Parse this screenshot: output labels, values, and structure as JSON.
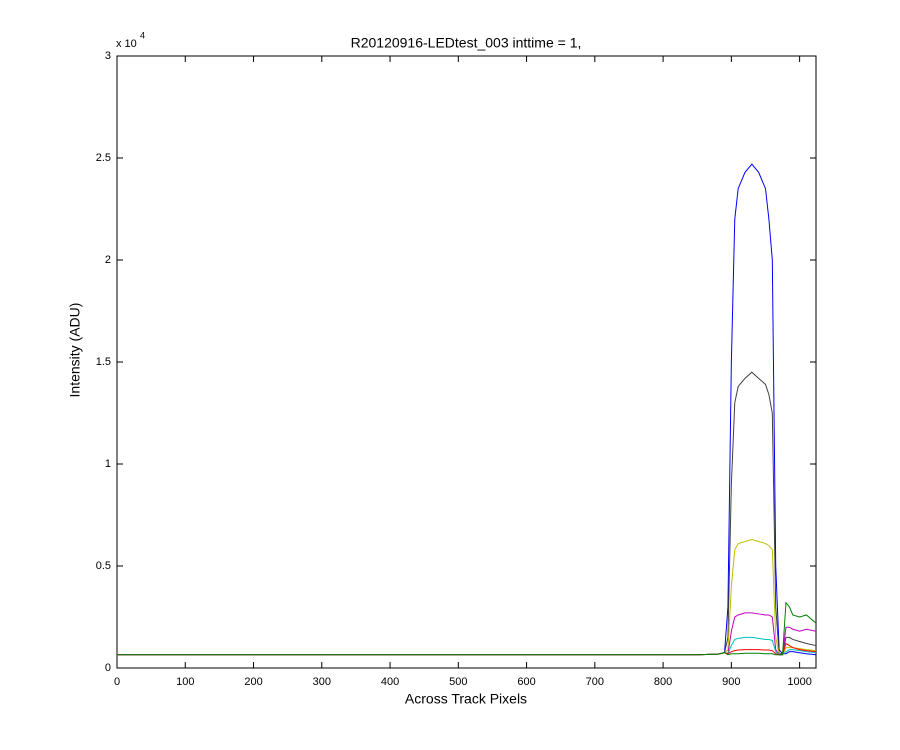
{
  "chart_data": {
    "type": "line",
    "title": "R20120916-LEDtest_003 inttime = 1,",
    "x_label": "Across Track Pixels",
    "y_label": "Intensity (ADU)",
    "y_multiplier": {
      "base": "x 10",
      "exponent": "4"
    },
    "x": [
      0,
      100,
      200,
      300,
      400,
      500,
      600,
      700,
      800,
      850,
      880,
      890,
      895,
      900,
      905,
      910,
      920,
      930,
      940,
      950,
      955,
      960,
      965,
      970,
      975,
      980,
      985,
      990,
      1000,
      1010,
      1024
    ],
    "series": [
      {
        "color": "#0000ff",
        "values": [
          650,
          650,
          650,
          650,
          650,
          650,
          650,
          650,
          650,
          650,
          680,
          750,
          3000,
          15000,
          22000,
          23500,
          24300,
          24700,
          24300,
          23500,
          22000,
          20000,
          5000,
          900,
          700,
          700,
          800,
          800,
          750,
          700,
          650
        ]
      },
      {
        "color": "#404040",
        "values": [
          650,
          650,
          650,
          650,
          650,
          650,
          650,
          650,
          650,
          650,
          680,
          750,
          1500,
          9000,
          13000,
          13800,
          14200,
          14500,
          14200,
          13900,
          13400,
          12500,
          3000,
          700,
          700,
          1500,
          1500,
          1400,
          1300,
          1200,
          1100
        ]
      },
      {
        "color": "#bfbf00",
        "values": [
          650,
          650,
          650,
          650,
          650,
          650,
          650,
          650,
          650,
          650,
          680,
          750,
          900,
          4000,
          5800,
          6100,
          6200,
          6300,
          6200,
          6100,
          6000,
          5800,
          1500,
          650,
          650,
          1000,
          1000,
          1000,
          950,
          900,
          850
        ]
      },
      {
        "color": "#bf00bf",
        "values": [
          650,
          650,
          650,
          650,
          650,
          650,
          650,
          650,
          650,
          650,
          680,
          750,
          700,
          1800,
          2500,
          2600,
          2700,
          2700,
          2650,
          2600,
          2600,
          2500,
          900,
          650,
          650,
          2000,
          2000,
          1900,
          1800,
          1900,
          1800
        ]
      },
      {
        "color": "#00bfbf",
        "values": [
          650,
          650,
          650,
          650,
          650,
          650,
          650,
          650,
          650,
          650,
          680,
          750,
          700,
          1100,
          1400,
          1450,
          1500,
          1500,
          1450,
          1400,
          1400,
          1350,
          800,
          650,
          650,
          800,
          900,
          900,
          850,
          800,
          750
        ]
      },
      {
        "color": "#ff0000",
        "values": [
          650,
          650,
          650,
          650,
          650,
          650,
          650,
          650,
          650,
          650,
          680,
          750,
          700,
          800,
          850,
          880,
          900,
          900,
          900,
          880,
          880,
          850,
          700,
          650,
          650,
          1200,
          1100,
          1000,
          900,
          850,
          800
        ]
      },
      {
        "color": "#008000",
        "values": [
          650,
          650,
          650,
          650,
          650,
          650,
          650,
          650,
          650,
          650,
          680,
          750,
          650,
          700,
          700,
          700,
          720,
          720,
          720,
          700,
          700,
          700,
          650,
          650,
          650,
          3200,
          3000,
          2600,
          2500,
          2600,
          2200
        ]
      }
    ],
    "xlim": [
      0,
      1024
    ],
    "xticks": [
      0,
      100,
      200,
      300,
      400,
      500,
      600,
      700,
      800,
      900,
      1000
    ],
    "ylim": [
      0,
      30000
    ],
    "yticks": [
      {
        "value": 0,
        "label": "0"
      },
      {
        "value": 5000,
        "label": "0.5"
      },
      {
        "value": 10000,
        "label": "1"
      },
      {
        "value": 15000,
        "label": "1.5"
      },
      {
        "value": 20000,
        "label": "2"
      },
      {
        "value": 25000,
        "label": "2.5"
      },
      {
        "value": 30000,
        "label": "3"
      }
    ],
    "grid": false
  }
}
